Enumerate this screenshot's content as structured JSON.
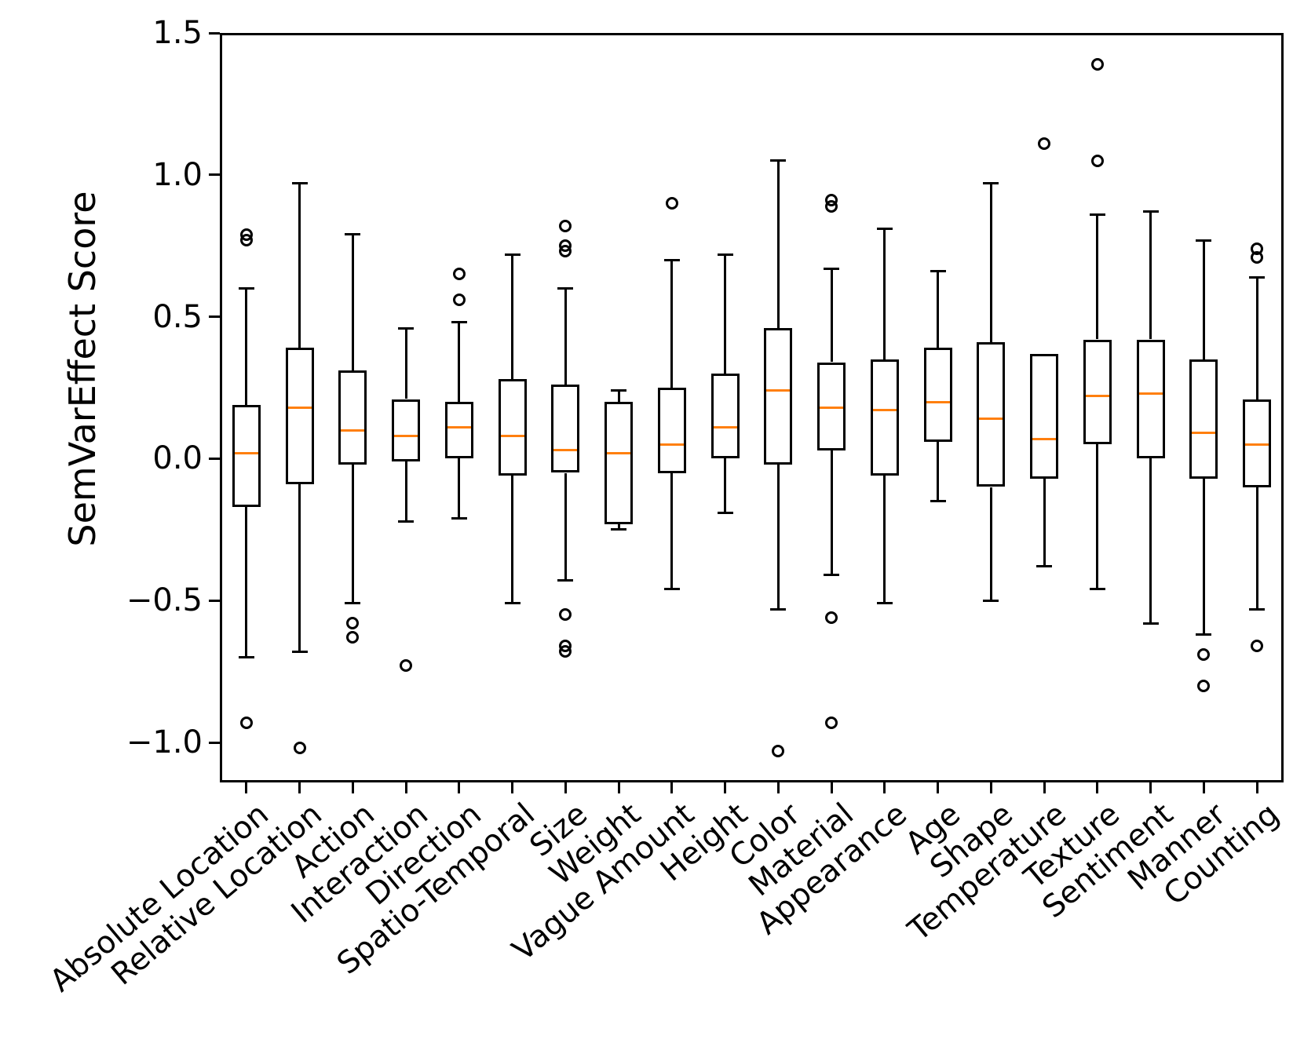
{
  "figure": {
    "background": "#ffffff"
  },
  "chart_data": {
    "type": "box",
    "title": "",
    "xlabel": "",
    "ylabel": "SemVarEffect Score",
    "ylim": [
      -1.141,
      1.5
    ],
    "grid": false,
    "legend": "none",
    "colors": {
      "median": "#ff7f0e",
      "line": "#000000",
      "background": "#ffffff"
    },
    "yticks": [
      {
        "value": 1.5,
        "label": "1.5"
      },
      {
        "value": 1.0,
        "label": "1.0"
      },
      {
        "value": 0.5,
        "label": "0.5"
      },
      {
        "value": 0.0,
        "label": "0.0"
      },
      {
        "value": -0.5,
        "label": "−0.5"
      },
      {
        "value": -1.0,
        "label": "−1.0"
      }
    ],
    "categories": [
      "Absolute Location",
      "Relative Location",
      "Action",
      "Interaction",
      "Direction",
      "Spatio-Temporal",
      "Size",
      "Weight",
      "Vague Amount",
      "Height",
      "Color",
      "Material",
      "Appearance",
      "Age",
      "Shape",
      "Temperature",
      "Texture",
      "Sentiment",
      "Manner",
      "Counting"
    ],
    "boxes": [
      {
        "label": "Absolute Location",
        "whislo": -0.7,
        "q1": -0.17,
        "med": 0.02,
        "q3": 0.19,
        "whishi": 0.6,
        "fliers": [
          0.79,
          0.77,
          -0.93
        ]
      },
      {
        "label": "Relative Location",
        "whislo": -0.68,
        "q1": -0.09,
        "med": 0.18,
        "q3": 0.39,
        "whishi": 0.97,
        "fliers": [
          -1.02
        ]
      },
      {
        "label": "Action",
        "whislo": -0.51,
        "q1": -0.02,
        "med": 0.1,
        "q3": 0.31,
        "whishi": 0.79,
        "fliers": [
          -0.58,
          -0.63
        ]
      },
      {
        "label": "Interaction",
        "whislo": -0.22,
        "q1": -0.01,
        "med": 0.08,
        "q3": 0.21,
        "whishi": 0.46,
        "fliers": [
          -0.73
        ]
      },
      {
        "label": "Direction",
        "whislo": -0.21,
        "q1": 0.0,
        "med": 0.11,
        "q3": 0.2,
        "whishi": 0.48,
        "fliers": [
          0.65,
          0.56
        ]
      },
      {
        "label": "Spatio-Temporal",
        "whislo": -0.51,
        "q1": -0.06,
        "med": 0.08,
        "q3": 0.28,
        "whishi": 0.72,
        "fliers": []
      },
      {
        "label": "Size",
        "whislo": -0.43,
        "q1": -0.05,
        "med": 0.03,
        "q3": 0.26,
        "whishi": 0.6,
        "fliers": [
          0.82,
          0.75,
          0.73,
          -0.55,
          -0.66,
          -0.68
        ]
      },
      {
        "label": "Weight",
        "whislo": -0.25,
        "q1": -0.23,
        "med": 0.02,
        "q3": 0.2,
        "whishi": 0.24,
        "fliers": []
      },
      {
        "label": "Vague Amount",
        "whislo": -0.46,
        "q1": -0.05,
        "med": 0.05,
        "q3": 0.25,
        "whishi": 0.7,
        "fliers": [
          0.9
        ]
      },
      {
        "label": "Height",
        "whislo": -0.19,
        "q1": 0.0,
        "med": 0.11,
        "q3": 0.3,
        "whishi": 0.72,
        "fliers": []
      },
      {
        "label": "Color",
        "whislo": -0.53,
        "q1": -0.02,
        "med": 0.24,
        "q3": 0.46,
        "whishi": 1.05,
        "fliers": [
          -1.03
        ]
      },
      {
        "label": "Material",
        "whislo": -0.41,
        "q1": 0.03,
        "med": 0.18,
        "q3": 0.34,
        "whishi": 0.67,
        "fliers": [
          0.91,
          0.89,
          -0.56,
          -0.93
        ]
      },
      {
        "label": "Appearance",
        "whislo": -0.51,
        "q1": -0.06,
        "med": 0.17,
        "q3": 0.35,
        "whishi": 0.81,
        "fliers": []
      },
      {
        "label": "Age",
        "whislo": -0.15,
        "q1": 0.06,
        "med": 0.2,
        "q3": 0.39,
        "whishi": 0.66,
        "fliers": []
      },
      {
        "label": "Shape",
        "whislo": -0.5,
        "q1": -0.1,
        "med": 0.14,
        "q3": 0.41,
        "whishi": 0.97,
        "fliers": []
      },
      {
        "label": "Temperature",
        "whislo": -0.38,
        "q1": -0.07,
        "med": 0.07,
        "q3": 0.37,
        "whishi": 0.37,
        "fliers": [
          1.11
        ]
      },
      {
        "label": "Texture",
        "whislo": -0.46,
        "q1": 0.05,
        "med": 0.22,
        "q3": 0.42,
        "whishi": 0.86,
        "fliers": [
          1.39,
          1.05
        ]
      },
      {
        "label": "Sentiment",
        "whislo": -0.58,
        "q1": 0.0,
        "med": 0.23,
        "q3": 0.42,
        "whishi": 0.87,
        "fliers": []
      },
      {
        "label": "Manner",
        "whislo": -0.62,
        "q1": -0.07,
        "med": 0.09,
        "q3": 0.35,
        "whishi": 0.77,
        "fliers": [
          -0.69,
          -0.8
        ]
      },
      {
        "label": "Counting",
        "whislo": -0.53,
        "q1": -0.1,
        "med": 0.05,
        "q3": 0.21,
        "whishi": 0.64,
        "fliers": [
          0.74,
          0.71,
          -0.66
        ]
      }
    ]
  }
}
